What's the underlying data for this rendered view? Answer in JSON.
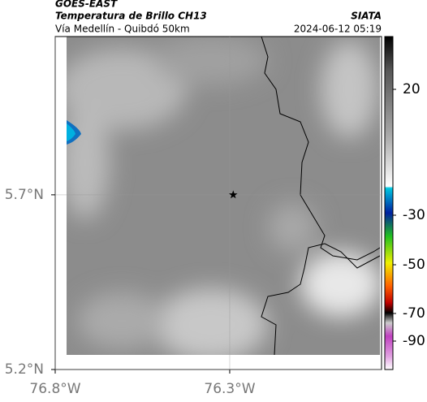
{
  "header": {
    "satellite": "GOES-EAST",
    "product": "Temperatura de Brillo CH13",
    "region": "Vía Medellín - Quibdó 50km",
    "source": "SIATA",
    "timestamp": "2024-06-12 05:19"
  },
  "map": {
    "lonlim": [
      -76.8,
      -75.865
    ],
    "latlim": [
      5.2,
      6.153
    ],
    "lonticks": [
      {
        "value": -76.8,
        "label": "76.8°W"
      },
      {
        "value": -76.3,
        "label": "76.3°W"
      }
    ],
    "latticks": [
      {
        "value": 5.2,
        "label": "5.2°N"
      },
      {
        "value": 5.7,
        "label": "5.7°N"
      }
    ],
    "marker": {
      "lon": -76.29,
      "lat": 5.7
    }
  },
  "colorbar": {
    "ticks": [
      20,
      -30,
      -50,
      -70,
      -90
    ]
  }
}
